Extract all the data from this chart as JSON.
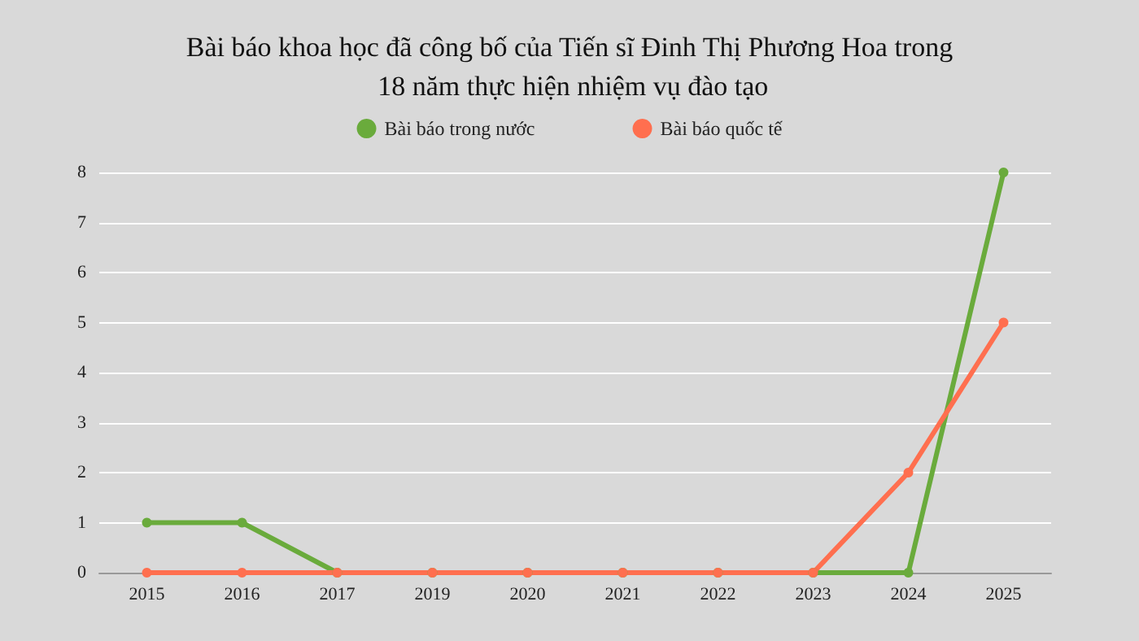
{
  "chart_data": {
    "type": "line",
    "title": "Bài báo khoa học đã công bố của Tiến sĩ Đinh Thị Phương Hoa trong 18 năm thực hiện nhiệm vụ đào tạo",
    "categories": [
      "2015",
      "2016",
      "2017",
      "2019",
      "2020",
      "2021",
      "2022",
      "2023",
      "2024",
      "2025"
    ],
    "series": [
      {
        "name": "Bài báo trong nước",
        "color": "#6aab3c",
        "values": [
          1,
          1,
          0,
          0,
          0,
          0,
          0,
          0,
          0,
          8
        ]
      },
      {
        "name": "Bài báo quốc tế",
        "color": "#ff6f4f",
        "values": [
          0,
          0,
          0,
          0,
          0,
          0,
          0,
          0,
          2,
          5
        ]
      }
    ],
    "ylim": [
      0,
      8
    ],
    "yticks": [
      0,
      1,
      2,
      3,
      4,
      5,
      6,
      7,
      8
    ],
    "grid": "y",
    "legend": "top",
    "marker": "circle",
    "line_style": "solid"
  }
}
